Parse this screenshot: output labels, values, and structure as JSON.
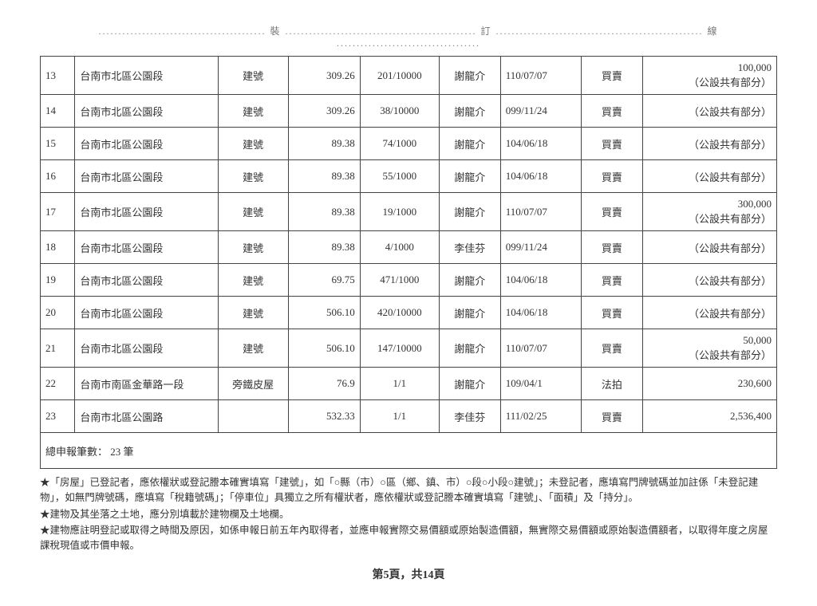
{
  "binding_marks": {
    "left": "裝",
    "mid": "訂",
    "right": "線"
  },
  "table": {
    "rows": [
      {
        "idx": "13",
        "loc": "台南市北區公園段",
        "type": "建號",
        "area": "309.26",
        "frac": "201/10000",
        "name": "謝龍介",
        "date": "110/07/07",
        "cause": "買賣",
        "note_top": "100,000",
        "note_bot": "（公設共有部分）"
      },
      {
        "idx": "14",
        "loc": "台南市北區公園段",
        "type": "建號",
        "area": "309.26",
        "frac": "38/10000",
        "name": "謝龍介",
        "date": "099/11/24",
        "cause": "買賣",
        "note_top": "",
        "note_bot": "（公設共有部分）"
      },
      {
        "idx": "15",
        "loc": "台南市北區公園段",
        "type": "建號",
        "area": "89.38",
        "frac": "74/1000",
        "name": "謝龍介",
        "date": "104/06/18",
        "cause": "買賣",
        "note_top": "",
        "note_bot": "（公設共有部分）"
      },
      {
        "idx": "16",
        "loc": "台南市北區公園段",
        "type": "建號",
        "area": "89.38",
        "frac": "55/1000",
        "name": "謝龍介",
        "date": "104/06/18",
        "cause": "買賣",
        "note_top": "",
        "note_bot": "（公設共有部分）"
      },
      {
        "idx": "17",
        "loc": "台南市北區公園段",
        "type": "建號",
        "area": "89.38",
        "frac": "19/1000",
        "name": "謝龍介",
        "date": "110/07/07",
        "cause": "買賣",
        "note_top": "300,000",
        "note_bot": "（公設共有部分）"
      },
      {
        "idx": "18",
        "loc": "台南市北區公園段",
        "type": "建號",
        "area": "89.38",
        "frac": "4/1000",
        "name": "李佳芬",
        "date": "099/11/24",
        "cause": "買賣",
        "note_top": "",
        "note_bot": "（公設共有部分）"
      },
      {
        "idx": "19",
        "loc": "台南市北區公園段",
        "type": "建號",
        "area": "69.75",
        "frac": "471/1000",
        "name": "謝龍介",
        "date": "104/06/18",
        "cause": "買賣",
        "note_top": "",
        "note_bot": "（公設共有部分）"
      },
      {
        "idx": "20",
        "loc": "台南市北區公園段",
        "type": "建號",
        "area": "506.10",
        "frac": "420/10000",
        "name": "謝龍介",
        "date": "104/06/18",
        "cause": "買賣",
        "note_top": "",
        "note_bot": "（公設共有部分）"
      },
      {
        "idx": "21",
        "loc": "台南市北區公園段",
        "type": "建號",
        "area": "506.10",
        "frac": "147/10000",
        "name": "謝龍介",
        "date": "110/07/07",
        "cause": "買賣",
        "note_top": "50,000",
        "note_bot": "（公設共有部分）"
      },
      {
        "idx": "22",
        "loc": "台南市南區金華路一段",
        "type": "旁鐵皮屋",
        "area": "76.9",
        "frac": "1/1",
        "name": "謝龍介",
        "date": "109/04/1",
        "cause": "法拍",
        "note_top": "230,600",
        "note_bot": ""
      },
      {
        "idx": "23",
        "loc": "台南市北區公園路",
        "type": "",
        "area": "532.33",
        "frac": "1/1",
        "name": "李佳芬",
        "date": "111/02/25",
        "cause": "買賣",
        "note_top": "2,536,400",
        "note_bot": ""
      }
    ],
    "summary": "總申報筆數： 23 筆"
  },
  "footnotes": {
    "n1": "★「房屋」已登記者，應依權狀或登記謄本確實填寫「建號」，如「○縣（市）○區（鄉、鎮、市）○段○小段○建號」；未登記者，應填寫門牌號碼並加註係「未登記建物」，如無門牌號碼，應填寫「稅籍號碼」；「停車位」具獨立之所有權狀者，應依權狀或登記謄本確實填寫「建號」、「面積」及「持分」。",
    "n2": "★建物及其坐落之土地，應分別填載於建物欄及土地欄。",
    "n3": "★建物應註明登記或取得之時間及原因，如係申報日前五年內取得者，並應申報實際交易價額或原始製造價額，無實際交易價額或原始製造價額者，以取得年度之房屋課稅現值或市價申報。"
  },
  "page_number": "第5頁，共14頁"
}
